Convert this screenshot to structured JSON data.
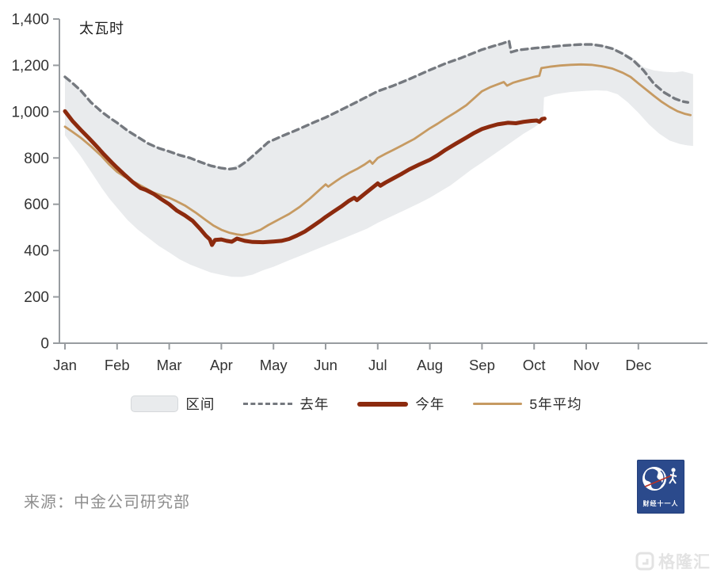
{
  "chart_data": {
    "type": "line",
    "unit_label": "太瓦时",
    "x_axis": {
      "labels": [
        "Jan",
        "Feb",
        "Mar",
        "Apr",
        "May",
        "Jun",
        "Jul",
        "Aug",
        "Sep",
        "Oct",
        "Nov",
        "Dec"
      ]
    },
    "y_axis": {
      "ylim": [
        0,
        1400
      ],
      "tick_values": [
        0,
        200,
        400,
        600,
        800,
        1000,
        1200,
        1400
      ],
      "tick_labels": [
        "0",
        "200",
        "400",
        "600",
        "800",
        "1,000",
        "1,200",
        "1,400"
      ]
    },
    "grid": false,
    "legend_position": "bottom",
    "band": {
      "name": "区间",
      "color": "#E9EBED",
      "upper": [
        [
          0,
          1152
        ],
        [
          0.3,
          1094
        ],
        [
          0.6,
          1008
        ],
        [
          1,
          954
        ],
        [
          1.5,
          872
        ],
        [
          2,
          830
        ],
        [
          2.5,
          790
        ],
        [
          3,
          758
        ],
        [
          3.15,
          754
        ],
        [
          3.5,
          790
        ],
        [
          3.9,
          870
        ],
        [
          4.5,
          928
        ],
        [
          5,
          978
        ],
        [
          5.5,
          1035
        ],
        [
          6,
          1090
        ],
        [
          6.5,
          1138
        ],
        [
          7,
          1182
        ],
        [
          7.5,
          1228
        ],
        [
          8,
          1270
        ],
        [
          8.3,
          1292
        ],
        [
          8.52,
          1308
        ],
        [
          8.56,
          1260
        ],
        [
          8.8,
          1270
        ],
        [
          9,
          1278
        ],
        [
          9.3,
          1285
        ],
        [
          9.6,
          1290
        ],
        [
          9.9,
          1295
        ],
        [
          10.1,
          1296
        ],
        [
          10.3,
          1290
        ],
        [
          10.5,
          1278
        ],
        [
          10.7,
          1258
        ],
        [
          10.9,
          1232
        ],
        [
          11.1,
          1192
        ],
        [
          11.3,
          1178
        ],
        [
          11.5,
          1172
        ],
        [
          11.7,
          1170
        ],
        [
          11.85,
          1174
        ],
        [
          12.05,
          1162
        ]
      ],
      "lower": [
        [
          0,
          898
        ],
        [
          0.15,
          852
        ],
        [
          0.3,
          808
        ],
        [
          0.5,
          740
        ],
        [
          0.7,
          672
        ],
        [
          0.85,
          625
        ],
        [
          1,
          585
        ],
        [
          1.2,
          532
        ],
        [
          1.4,
          490
        ],
        [
          1.6,
          455
        ],
        [
          1.8,
          420
        ],
        [
          2,
          392
        ],
        [
          2.2,
          362
        ],
        [
          2.4,
          340
        ],
        [
          2.6,
          322
        ],
        [
          2.8,
          305
        ],
        [
          3,
          295
        ],
        [
          3.2,
          287
        ],
        [
          3.4,
          286
        ],
        [
          3.6,
          296
        ],
        [
          3.8,
          315
        ],
        [
          4,
          330
        ],
        [
          4.3,
          358
        ],
        [
          4.6,
          385
        ],
        [
          5,
          422
        ],
        [
          5.4,
          458
        ],
        [
          5.8,
          495
        ],
        [
          6,
          520
        ],
        [
          6.4,
          562
        ],
        [
          6.8,
          605
        ],
        [
          7,
          628
        ],
        [
          7.4,
          682
        ],
        [
          7.8,
          750
        ],
        [
          8,
          780
        ],
        [
          8.4,
          842
        ],
        [
          8.8,
          905
        ],
        [
          9,
          932
        ],
        [
          9.1,
          948
        ],
        [
          9.17,
          962
        ],
        [
          9.19,
          1062
        ],
        [
          9.4,
          1075
        ],
        [
          9.7,
          1085
        ],
        [
          10,
          1090
        ],
        [
          10.2,
          1092
        ],
        [
          10.4,
          1090
        ],
        [
          10.6,
          1075
        ],
        [
          10.8,
          1040
        ],
        [
          11,
          995
        ],
        [
          11.2,
          945
        ],
        [
          11.4,
          905
        ],
        [
          11.6,
          875
        ],
        [
          11.8,
          860
        ],
        [
          11.95,
          854
        ],
        [
          12.05,
          852
        ]
      ]
    },
    "series": [
      {
        "id": "last-year",
        "name": "去年",
        "style": "dashed",
        "color": "#75797F",
        "width": 3.4,
        "points": [
          [
            0,
            1150
          ],
          [
            0.15,
            1122
          ],
          [
            0.3,
            1092
          ],
          [
            0.5,
            1040
          ],
          [
            0.7,
            1000
          ],
          [
            0.85,
            975
          ],
          [
            1,
            952
          ],
          [
            1.2,
            918
          ],
          [
            1.4,
            890
          ],
          [
            1.6,
            862
          ],
          [
            1.8,
            842
          ],
          [
            2,
            828
          ],
          [
            2.2,
            812
          ],
          [
            2.4,
            800
          ],
          [
            2.6,
            782
          ],
          [
            2.8,
            766
          ],
          [
            3,
            756
          ],
          [
            3.15,
            752
          ],
          [
            3.3,
            756
          ],
          [
            3.5,
            788
          ],
          [
            3.7,
            828
          ],
          [
            3.9,
            868
          ],
          [
            4.2,
            898
          ],
          [
            4.5,
            926
          ],
          [
            4.8,
            956
          ],
          [
            5,
            975
          ],
          [
            5.3,
            1008
          ],
          [
            5.6,
            1042
          ],
          [
            6,
            1088
          ],
          [
            6.3,
            1112
          ],
          [
            6.6,
            1140
          ],
          [
            7,
            1180
          ],
          [
            7.3,
            1208
          ],
          [
            7.6,
            1232
          ],
          [
            8,
            1268
          ],
          [
            8.2,
            1282
          ],
          [
            8.4,
            1295
          ],
          [
            8.52,
            1305
          ],
          [
            8.56,
            1257
          ],
          [
            8.7,
            1266
          ],
          [
            9,
            1274
          ],
          [
            9.3,
            1280
          ],
          [
            9.6,
            1286
          ],
          [
            9.9,
            1290
          ],
          [
            10.1,
            1290
          ],
          [
            10.3,
            1284
          ],
          [
            10.5,
            1272
          ],
          [
            10.7,
            1250
          ],
          [
            10.9,
            1222
          ],
          [
            11.1,
            1178
          ],
          [
            11.3,
            1120
          ],
          [
            11.5,
            1082
          ],
          [
            11.7,
            1056
          ],
          [
            11.85,
            1044
          ],
          [
            11.95,
            1040
          ]
        ]
      },
      {
        "id": "five-year-avg",
        "name": "5年平均",
        "style": "solid",
        "color": "#C69A62",
        "width": 2.8,
        "points": [
          [
            0,
            935
          ],
          [
            0.15,
            912
          ],
          [
            0.3,
            888
          ],
          [
            0.5,
            850
          ],
          [
            0.7,
            808
          ],
          [
            0.85,
            772
          ],
          [
            1,
            740
          ],
          [
            1.15,
            718
          ],
          [
            1.3,
            700
          ],
          [
            1.5,
            675
          ],
          [
            1.7,
            650
          ],
          [
            1.85,
            638
          ],
          [
            2,
            628
          ],
          [
            2.15,
            612
          ],
          [
            2.3,
            595
          ],
          [
            2.5,
            565
          ],
          [
            2.7,
            532
          ],
          [
            2.85,
            508
          ],
          [
            3,
            490
          ],
          [
            3.15,
            477
          ],
          [
            3.3,
            470
          ],
          [
            3.4,
            467
          ],
          [
            3.5,
            471
          ],
          [
            3.6,
            477
          ],
          [
            3.75,
            490
          ],
          [
            3.9,
            510
          ],
          [
            4,
            522
          ],
          [
            4.15,
            540
          ],
          [
            4.3,
            558
          ],
          [
            4.5,
            588
          ],
          [
            4.7,
            625
          ],
          [
            4.85,
            655
          ],
          [
            5,
            686
          ],
          [
            5.05,
            676
          ],
          [
            5.2,
            700
          ],
          [
            5.3,
            715
          ],
          [
            5.45,
            735
          ],
          [
            5.6,
            752
          ],
          [
            5.75,
            772
          ],
          [
            5.85,
            788
          ],
          [
            5.9,
            775
          ],
          [
            6,
            800
          ],
          [
            6.15,
            818
          ],
          [
            6.3,
            835
          ],
          [
            6.5,
            858
          ],
          [
            6.7,
            882
          ],
          [
            6.85,
            905
          ],
          [
            7,
            928
          ],
          [
            7.15,
            948
          ],
          [
            7.3,
            970
          ],
          [
            7.5,
            998
          ],
          [
            7.7,
            1028
          ],
          [
            7.85,
            1058
          ],
          [
            8,
            1088
          ],
          [
            8.15,
            1105
          ],
          [
            8.3,
            1118
          ],
          [
            8.42,
            1128
          ],
          [
            8.48,
            1112
          ],
          [
            8.6,
            1125
          ],
          [
            8.75,
            1135
          ],
          [
            8.9,
            1144
          ],
          [
            9,
            1150
          ],
          [
            9.1,
            1155
          ],
          [
            9.14,
            1188
          ],
          [
            9.3,
            1194
          ],
          [
            9.5,
            1199
          ],
          [
            9.7,
            1202
          ],
          [
            9.9,
            1204
          ],
          [
            10.1,
            1202
          ],
          [
            10.3,
            1196
          ],
          [
            10.5,
            1186
          ],
          [
            10.7,
            1168
          ],
          [
            10.85,
            1150
          ],
          [
            11,
            1122
          ],
          [
            11.15,
            1095
          ],
          [
            11.3,
            1068
          ],
          [
            11.45,
            1042
          ],
          [
            11.6,
            1020
          ],
          [
            11.75,
            1002
          ],
          [
            11.9,
            990
          ],
          [
            12,
            985
          ]
        ]
      },
      {
        "id": "this-year",
        "name": "今年",
        "style": "solid",
        "color": "#8C2A0E",
        "width": 5,
        "points": [
          [
            0,
            1002
          ],
          [
            0.15,
            958
          ],
          [
            0.3,
            922
          ],
          [
            0.45,
            888
          ],
          [
            0.6,
            852
          ],
          [
            0.75,
            815
          ],
          [
            0.9,
            780
          ],
          [
            1,
            758
          ],
          [
            1.15,
            726
          ],
          [
            1.3,
            696
          ],
          [
            1.45,
            670
          ],
          [
            1.55,
            662
          ],
          [
            1.7,
            645
          ],
          [
            1.85,
            622
          ],
          [
            2,
            600
          ],
          [
            2.15,
            572
          ],
          [
            2.3,
            552
          ],
          [
            2.45,
            528
          ],
          [
            2.6,
            492
          ],
          [
            2.7,
            465
          ],
          [
            2.78,
            448
          ],
          [
            2.82,
            424
          ],
          [
            2.88,
            446
          ],
          [
            3,
            448
          ],
          [
            3.1,
            442
          ],
          [
            3.2,
            438
          ],
          [
            3.3,
            452
          ],
          [
            3.45,
            442
          ],
          [
            3.6,
            437
          ],
          [
            3.8,
            436
          ],
          [
            4,
            439
          ],
          [
            4.15,
            442
          ],
          [
            4.3,
            450
          ],
          [
            4.45,
            465
          ],
          [
            4.6,
            482
          ],
          [
            4.75,
            505
          ],
          [
            4.9,
            528
          ],
          [
            5,
            545
          ],
          [
            5.15,
            568
          ],
          [
            5.3,
            590
          ],
          [
            5.45,
            615
          ],
          [
            5.55,
            628
          ],
          [
            5.6,
            618
          ],
          [
            5.75,
            645
          ],
          [
            5.9,
            672
          ],
          [
            6,
            690
          ],
          [
            6.05,
            680
          ],
          [
            6.15,
            694
          ],
          [
            6.3,
            712
          ],
          [
            6.45,
            730
          ],
          [
            6.6,
            750
          ],
          [
            6.8,
            772
          ],
          [
            7,
            792
          ],
          [
            7.15,
            812
          ],
          [
            7.3,
            835
          ],
          [
            7.5,
            862
          ],
          [
            7.7,
            888
          ],
          [
            7.85,
            908
          ],
          [
            8,
            925
          ],
          [
            8.15,
            936
          ],
          [
            8.3,
            945
          ],
          [
            8.5,
            952
          ],
          [
            8.65,
            950
          ],
          [
            8.8,
            956
          ],
          [
            8.95,
            960
          ],
          [
            9.05,
            962
          ],
          [
            9.1,
            956
          ],
          [
            9.15,
            968
          ],
          [
            9.2,
            970
          ]
        ]
      }
    ]
  },
  "legend": {
    "items": [
      {
        "label": "区间",
        "swatch": "band"
      },
      {
        "label": "去年",
        "swatch": "dashed"
      },
      {
        "label": "今年",
        "swatch": "thick"
      },
      {
        "label": "5年平均",
        "swatch": "thin"
      }
    ]
  },
  "footer": {
    "source_text": "来源：中金公司研究部"
  },
  "logo": {
    "caption": "财经十一人",
    "bg_color": "#2B4A8C"
  },
  "watermark": {
    "text": "格隆汇"
  }
}
